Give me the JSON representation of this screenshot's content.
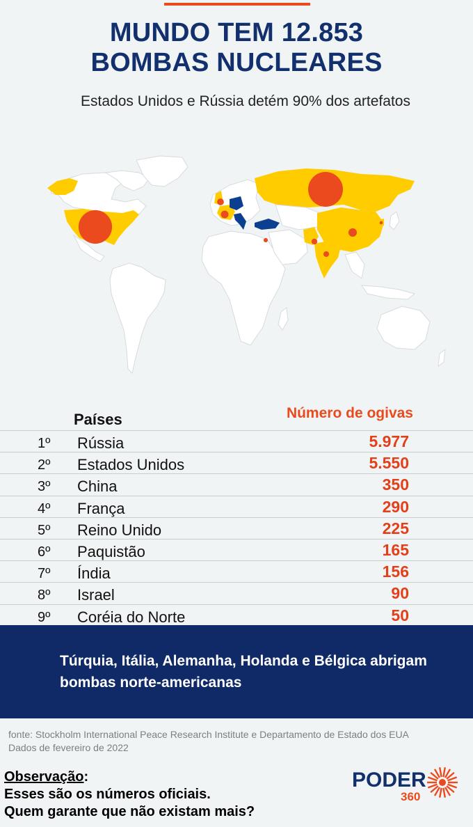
{
  "header": {
    "title_line1": "MUNDO TEM 12.853",
    "title_line2": "BOMBAS NUCLEARES",
    "subtitle": "Estados Unidos e Rússia detém 90% dos artefatos"
  },
  "colors": {
    "navy": "#13306e",
    "orange": "#ea4a1e",
    "yellow": "#ffcc00",
    "land": "#ffffff",
    "host_blue": "#0d3f91"
  },
  "chart_data": {
    "type": "table",
    "headers": [
      "Países",
      "Número de ogivas"
    ],
    "rows": [
      {
        "rank": "1º",
        "country": "Rússia",
        "value": "5.977"
      },
      {
        "rank": "2º",
        "country": "Estados Unidos",
        "value": "5.550"
      },
      {
        "rank": "3º",
        "country": "China",
        "value": "350"
      },
      {
        "rank": "4º",
        "country": "França",
        "value": "290"
      },
      {
        "rank": "5º",
        "country": "Reino Unido",
        "value": "225"
      },
      {
        "rank": "6º",
        "country": "Paquistão",
        "value": "165"
      },
      {
        "rank": "7º",
        "country": "Índia",
        "value": "156"
      },
      {
        "rank": "8º",
        "country": "Israel",
        "value": "90"
      },
      {
        "rank": "9º",
        "country": "Coréia do Norte",
        "value": "50"
      }
    ]
  },
  "note": {
    "text": "Túrquia, Itália, Alemanha, Holanda e Bélgica abrigam bombas norte-americanas"
  },
  "source": {
    "line1": "fonte: Stockholm International Peace Research Institute e Departamento de Estado dos EUA",
    "line2": "Dados de fevereiro de 2022"
  },
  "observation": {
    "heading": "Observação",
    "colon": ":",
    "line1": "Esses são os números oficiais.",
    "line2": "Quem garante que não existam mais?"
  },
  "logo": {
    "word": "PODER",
    "number": "360"
  }
}
